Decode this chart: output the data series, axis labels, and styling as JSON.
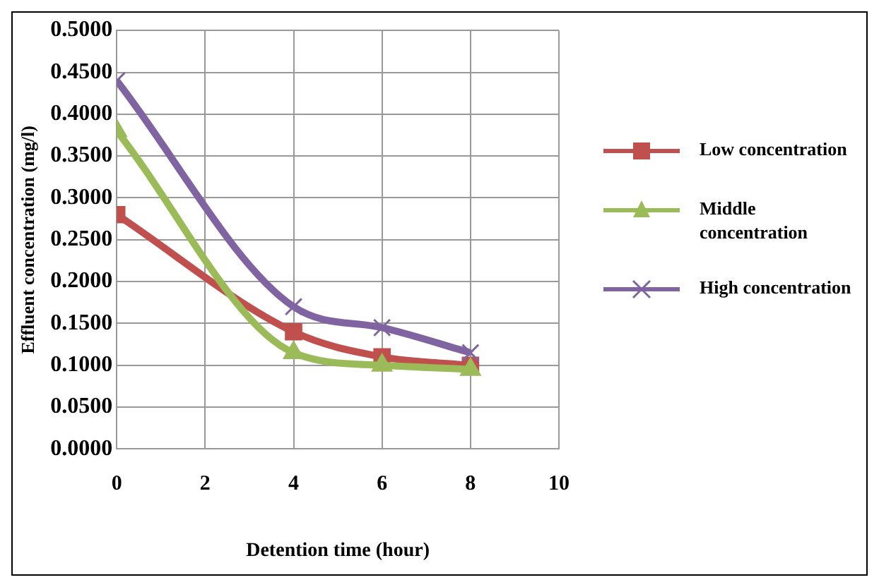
{
  "chart_data": {
    "type": "line",
    "xlabel": "Detention time (hour)",
    "ylabel": "Effluent concentration (mg/l)",
    "x": [
      0,
      4,
      6,
      8
    ],
    "series": [
      {
        "name": "Low concentration",
        "color": "#c0504d",
        "marker": "square",
        "values": [
          0.28,
          0.14,
          0.11,
          0.1
        ]
      },
      {
        "name": "Middle concentration",
        "color": "#9bbb59",
        "marker": "triangle",
        "values": [
          0.38,
          0.115,
          0.1,
          0.095
        ]
      },
      {
        "name": "High concentration",
        "color": "#8064a2",
        "marker": "cross",
        "values": [
          0.44,
          0.17,
          0.145,
          0.115
        ]
      }
    ],
    "xlim": [
      0,
      10
    ],
    "xticks": [
      0,
      2,
      4,
      6,
      8,
      10
    ],
    "ylim": [
      0,
      0.5
    ],
    "yticks": [
      {
        "value": 0,
        "label": "0.0000"
      },
      {
        "value": 0.05,
        "label": "0.0500"
      },
      {
        "value": 0.1,
        "label": "0.1000"
      },
      {
        "value": 0.15,
        "label": "0.1500"
      },
      {
        "value": 0.2,
        "label": "0.2000"
      },
      {
        "value": 0.25,
        "label": "0.2500"
      },
      {
        "value": 0.3,
        "label": "0.3000"
      },
      {
        "value": 0.35,
        "label": "0.3500"
      },
      {
        "value": 0.4,
        "label": "0.4000"
      },
      {
        "value": 0.45,
        "label": "0.4500"
      },
      {
        "value": 0.5,
        "label": "0.5000"
      }
    ],
    "grid": true,
    "legend": "right"
  }
}
